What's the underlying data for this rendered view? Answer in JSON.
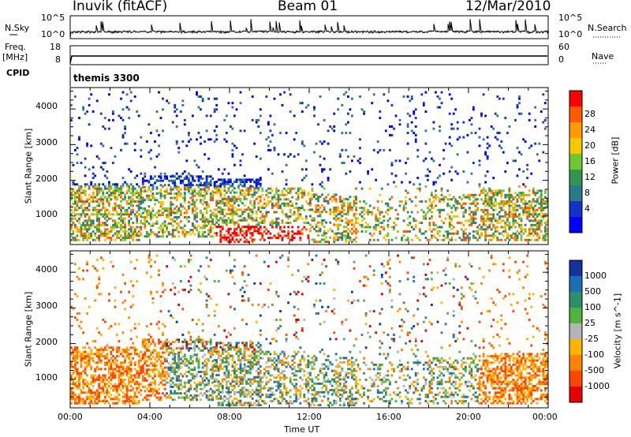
{
  "header": {
    "radar": "Inuvik (fitACF)",
    "beam": "Beam 01",
    "date": "12/Mar/2010"
  },
  "top_panels": {
    "nsky_label": "N.Sky",
    "nsearch_label": "N.Search",
    "nsky_ticks": [
      "10^5",
      "10^0"
    ],
    "nsearch_ticks": [
      "10^5",
      "10^0"
    ],
    "freq_label_1": "Freq.",
    "freq_label_2": "[MHz]",
    "freq_ticks": [
      "18",
      "8"
    ],
    "nave_label": "Nave",
    "nave_ticks": [
      "60",
      "0"
    ],
    "cpid_label": "CPID",
    "cpid_value": "themis 3300"
  },
  "chart_data": [
    {
      "type": "heatmap",
      "name": "power",
      "ylabel": "Slant Range [km]",
      "y_ticks": [
        "1000",
        "2000",
        "3000",
        "4000"
      ],
      "ylim": [
        200,
        4600
      ],
      "colorbar_label": "Power [dB]",
      "colorbar_ticks": [
        "28",
        "24",
        "20",
        "16",
        "12",
        "8",
        "4"
      ],
      "colorbar_colors": [
        "#ff0000",
        "#ff5a00",
        "#ff9a00",
        "#f5c800",
        "#6ec832",
        "#329650",
        "#287a8c",
        "#1432c8",
        "#0000ff"
      ]
    },
    {
      "type": "heatmap",
      "name": "velocity",
      "ylabel": "Slant Range [km]",
      "y_ticks": [
        "1000",
        "2000",
        "3000",
        "4000"
      ],
      "ylim": [
        200,
        4600
      ],
      "colorbar_label": "Velocity [m s^-1]",
      "colorbar_ticks": [
        "1000",
        "500",
        "100",
        "25",
        "-25",
        "-100",
        "-500",
        "-1000"
      ],
      "colorbar_colors": [
        "#1432a0",
        "#1e6eb4",
        "#2f8f6a",
        "#50b43c",
        "#b4b4b4",
        "#ffb400",
        "#ff8200",
        "#ff4600",
        "#e60000"
      ],
      "xlabel": "Time UT",
      "x_ticks": [
        "00:00",
        "04:00",
        "08:00",
        "12:00",
        "16:00",
        "20:00",
        "00:00"
      ]
    }
  ]
}
